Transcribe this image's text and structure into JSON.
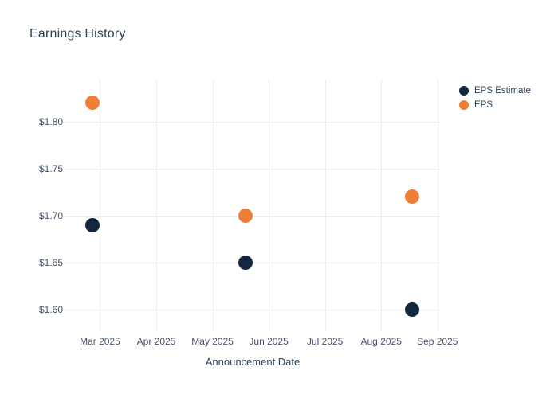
{
  "chart_data": {
    "type": "scatter",
    "title": "Earnings History",
    "xlabel": "Announcement Date",
    "ylabel": "",
    "grid": true,
    "legend_position": "top-right",
    "x_unit": "months, 0 = Mar 2025 gridline",
    "xlim": [
      -0.63,
      6.06
    ],
    "ylim": [
      1.576,
      1.845
    ],
    "x_ticks": [
      {
        "pos": 0,
        "label": "Mar 2025"
      },
      {
        "pos": 1,
        "label": "Apr 2025"
      },
      {
        "pos": 2,
        "label": "May 2025"
      },
      {
        "pos": 3,
        "label": "Jun 2025"
      },
      {
        "pos": 4,
        "label": "Jul 2025"
      },
      {
        "pos": 5,
        "label": "Aug 2025"
      },
      {
        "pos": 6,
        "label": "Sep 2025"
      }
    ],
    "y_ticks": [
      {
        "value": 1.8,
        "label": "$1.80"
      },
      {
        "value": 1.75,
        "label": "$1.75"
      },
      {
        "value": 1.7,
        "label": "$1.70"
      },
      {
        "value": 1.65,
        "label": "$1.65"
      },
      {
        "value": 1.6,
        "label": "$1.60"
      }
    ],
    "series": [
      {
        "name": "EPS Estimate",
        "color": "#15263f",
        "marker": "circle",
        "points": [
          {
            "x": -0.14,
            "x_date_approx": "late Feb 2025",
            "y": 1.69
          },
          {
            "x": 2.59,
            "x_date_approx": "mid May 2025",
            "y": 1.65
          },
          {
            "x": 5.55,
            "x_date_approx": "mid Aug 2025",
            "y": 1.6
          }
        ]
      },
      {
        "name": "EPS",
        "color": "#ef7e37",
        "marker": "circle",
        "points": [
          {
            "x": -0.14,
            "x_date_approx": "late Feb 2025",
            "y": 1.82
          },
          {
            "x": 2.59,
            "x_date_approx": "mid May 2025",
            "y": 1.7
          },
          {
            "x": 5.55,
            "x_date_approx": "mid Aug 2025",
            "y": 1.72
          }
        ]
      }
    ],
    "colors": {
      "background": "#ffffff",
      "gridline": "#e8edf3",
      "title_text": "#2e4157",
      "tick_text": "#44516b"
    }
  }
}
